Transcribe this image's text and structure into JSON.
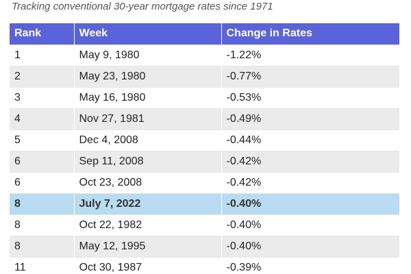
{
  "subtitle": "Tracking conventional 30-year mortgage rates since 1971",
  "columns": [
    "Rank",
    "Week",
    "Change in Rates"
  ],
  "rows": [
    {
      "rank": "1",
      "week": "May 9, 1980",
      "change": "-1.22%"
    },
    {
      "rank": "2",
      "week": "May 23, 1980",
      "change": "-0.77%"
    },
    {
      "rank": "3",
      "week": "May 16, 1980",
      "change": "-0.53%"
    },
    {
      "rank": "4",
      "week": "Nov 27, 1981",
      "change": "-0.49%"
    },
    {
      "rank": "5",
      "week": "Dec 4, 2008",
      "change": "-0.44%"
    },
    {
      "rank": "6",
      "week": "Sep 11, 2008",
      "change": "-0.42%"
    },
    {
      "rank": "6",
      "week": "Oct 23, 2008",
      "change": "-0.42%"
    },
    {
      "rank": "8",
      "week": "July 7, 2022",
      "change": "-0.40%"
    },
    {
      "rank": "8",
      "week": "Oct 22, 1982",
      "change": "-0.40%"
    },
    {
      "rank": "8",
      "week": "May 12, 1995",
      "change": "-0.40%"
    },
    {
      "rank": "11",
      "week": "Oct 30, 1987",
      "change": "-0.39%"
    }
  ],
  "highlight_row": 7,
  "colors": {
    "header_bg": "#5a63d8",
    "header_text": "#ffffff",
    "stripe": "#ebebeb",
    "highlight": "#b9dcf2"
  }
}
